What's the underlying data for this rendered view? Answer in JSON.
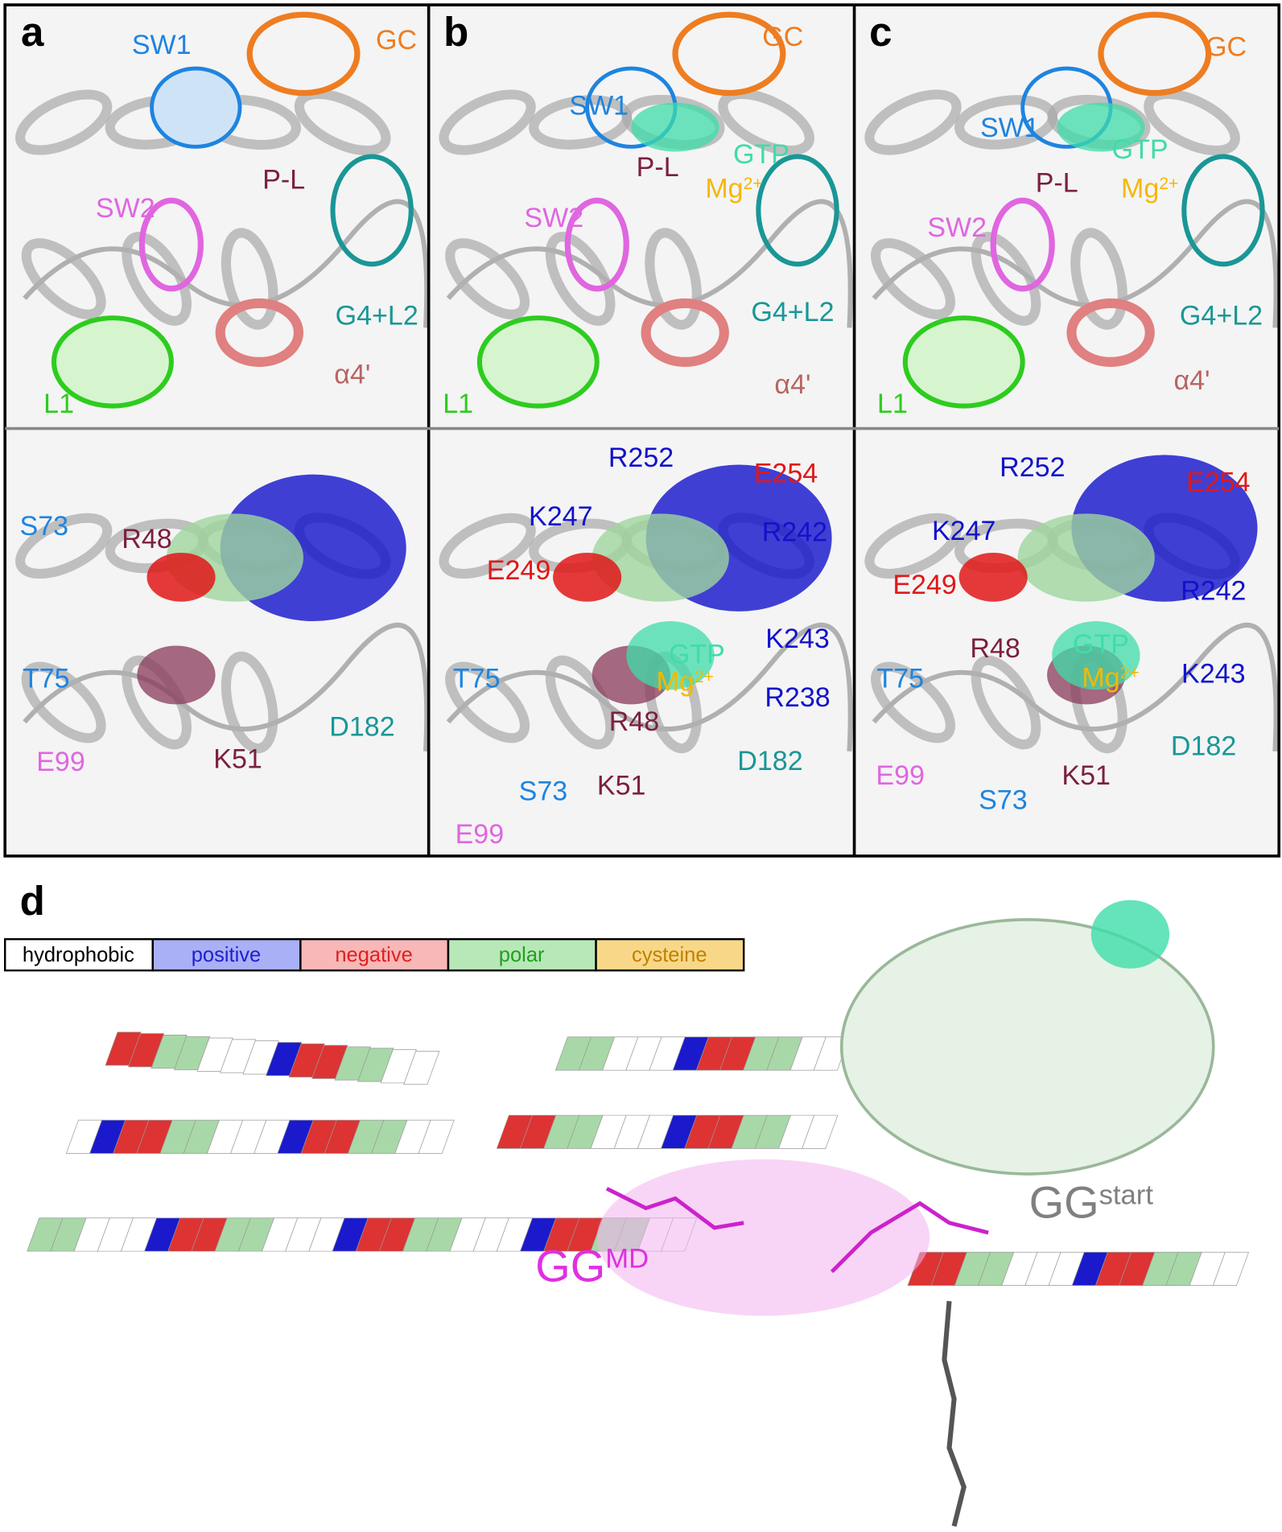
{
  "panels": [
    {
      "label": "a",
      "top": [
        "SW1",
        "GC",
        "SW2",
        "P-L",
        "G4+L2",
        "α4'",
        "L1"
      ],
      "bottom": [
        "S73",
        "R48",
        "T75",
        "E99",
        "K51",
        "D182"
      ]
    },
    {
      "label": "b",
      "top": [
        "SW1",
        "GC",
        "P-L",
        "GTP",
        {
          "text": "Mg",
          "sup": "2+"
        },
        "SW2",
        "G4+L2",
        "α4'",
        "L1"
      ],
      "bottom": [
        "R252",
        "E254",
        "K247",
        "R242",
        "E249",
        "K243",
        "GTP",
        {
          "text": "Mg",
          "sup": "2+"
        },
        "T75",
        "R238",
        "R48",
        "D182",
        "S73",
        "K51",
        "E99"
      ]
    },
    {
      "label": "c",
      "top": [
        "SW1",
        "GC",
        "GTP",
        {
          "text": "Mg",
          "sup": "2+"
        },
        "P-L",
        "SW2",
        "G4+L2",
        "α4'",
        "L1"
      ],
      "bottom": [
        "R252",
        "E254",
        "K247",
        "R242",
        "E249",
        "R48",
        "GTP",
        {
          "text": "Mg",
          "sup": "2+"
        },
        "K243",
        "T75",
        "D182",
        "E99",
        "S73",
        "K51"
      ]
    }
  ],
  "panel_d": {
    "label": "d",
    "legend": [
      "hydrophobic",
      "positive",
      "negative",
      "polar",
      "cysteine"
    ],
    "gg_md": {
      "text": "GG",
      "sup": "MD"
    },
    "gg_start": {
      "text": "GG",
      "sup": "start"
    }
  }
}
